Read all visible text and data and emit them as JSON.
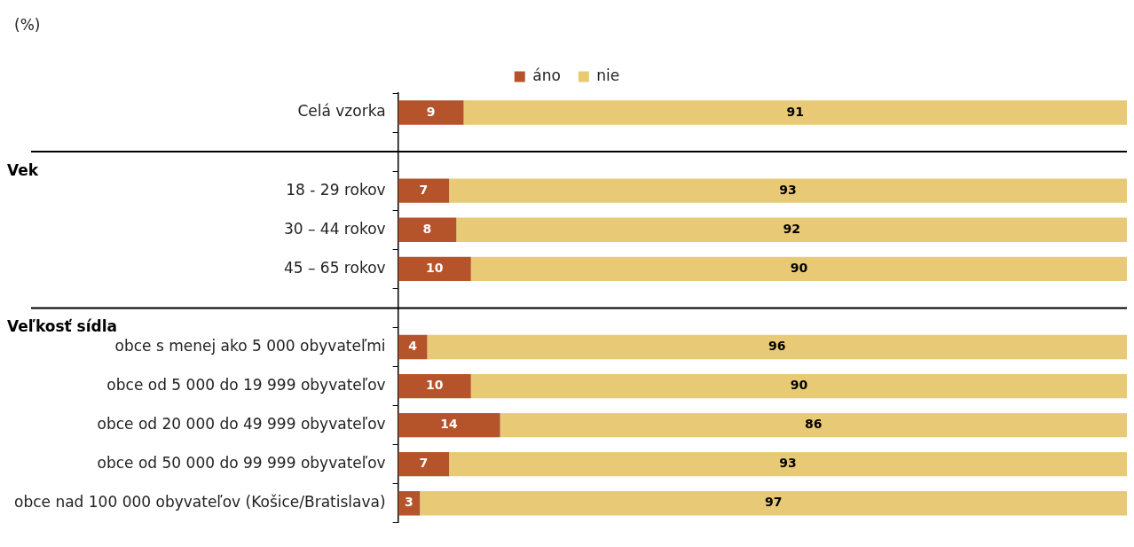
{
  "chart_data": {
    "type": "bar",
    "orientation": "horizontal",
    "stacked": true,
    "data_labels": true,
    "legend": "top",
    "xlim": [
      0,
      100
    ],
    "tick_labels": "y",
    "categories": [
      "Celá vzorka",
      null,
      "18 - 29 rokov",
      "30 – 44 rokov",
      "45 – 65 rokov",
      null,
      "obce s menej ako 5 000 obyvateľmi",
      "obce od 5 000 do 19 999 obyvateľov",
      "obce od 20 000 do 49 999 obyvateľov",
      "obce od 50 000 do 99 999 obyvateľov",
      "obce nad 100 000 obyvateľov (Košice/Bratislava)"
    ],
    "series": [
      {
        "name": "áno",
        "color": "#b5532a",
        "values": [
          9,
          null,
          7,
          8,
          10,
          null,
          4,
          10,
          14,
          7,
          3
        ]
      },
      {
        "name": "nie",
        "color": "#e8c976",
        "values": [
          91,
          null,
          93,
          92,
          90,
          null,
          96,
          90,
          86,
          93,
          97
        ]
      }
    ],
    "annotations": [
      "(%)",
      "Vek",
      "Veľkosť sídla"
    ]
  }
}
